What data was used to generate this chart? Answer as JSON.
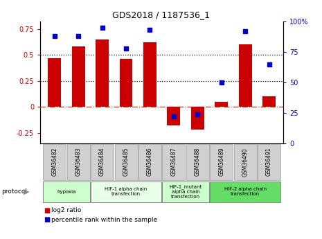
{
  "title": "GDS2018 / 1187536_1",
  "samples": [
    "GSM36482",
    "GSM36483",
    "GSM36484",
    "GSM36485",
    "GSM36486",
    "GSM36487",
    "GSM36488",
    "GSM36489",
    "GSM36490",
    "GSM36491"
  ],
  "log2_ratio": [
    0.47,
    0.58,
    0.65,
    0.46,
    0.62,
    -0.18,
    -0.22,
    0.05,
    0.6,
    0.1
  ],
  "percentile_rank": [
    88,
    88,
    95,
    78,
    93,
    22,
    24,
    50,
    92,
    65
  ],
  "bar_color": "#cc0000",
  "dot_color": "#0000cc",
  "ylim_left": [
    -0.35,
    0.82
  ],
  "ylim_right": [
    0,
    100
  ],
  "yticks_left": [
    -0.25,
    0,
    0.25,
    0.5,
    0.75
  ],
  "yticks_right": [
    0,
    25,
    50,
    75,
    100
  ],
  "hlines": [
    0.5,
    0.25
  ],
  "zero_line_color": "#cc3300",
  "groups": [
    {
      "label": "hypoxia",
      "start": 0,
      "end": 1,
      "color": "#ccffcc",
      "border": "#888888"
    },
    {
      "label": "HIF-1 alpha chain\ntransfection",
      "start": 2,
      "end": 4,
      "color": "#e8ffe8",
      "border": "#888888"
    },
    {
      "label": "HIF-1_mutant\nalpha chain\ntransfection",
      "start": 5,
      "end": 6,
      "color": "#ccffcc",
      "border": "#888888"
    },
    {
      "label": "HIF-2 alpha chain\ntransfection",
      "start": 7,
      "end": 9,
      "color": "#66dd66",
      "border": "#888888"
    }
  ],
  "bar_width": 0.55
}
